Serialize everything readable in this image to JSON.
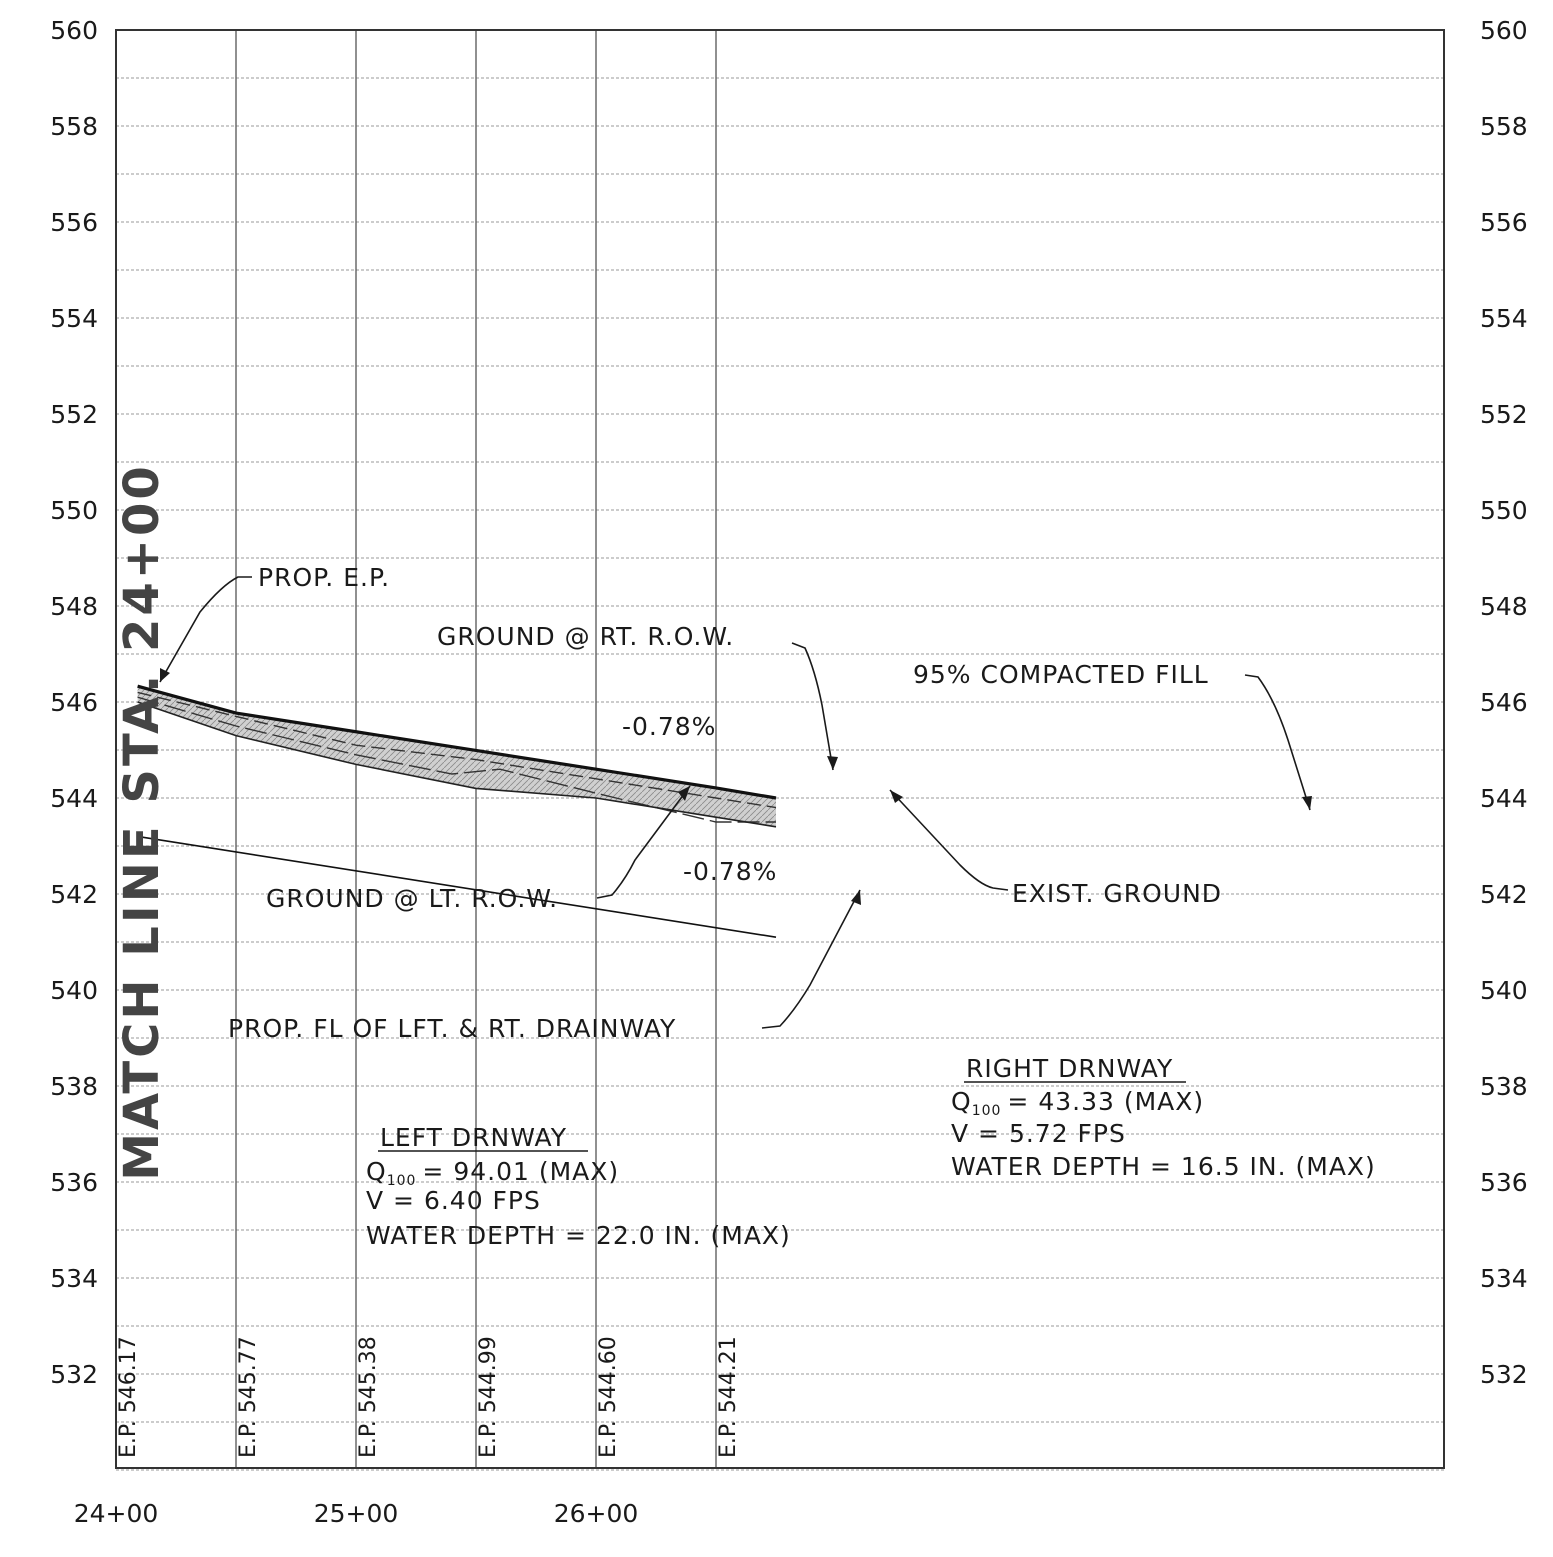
{
  "chart_data": {
    "type": "line",
    "title": "",
    "xlabel": "",
    "ylabel": "",
    "ylim": [
      530,
      560
    ],
    "yticks": [
      "532",
      "534",
      "536",
      "538",
      "540",
      "542",
      "544",
      "546",
      "548",
      "550",
      "552",
      "554",
      "556",
      "558",
      "560"
    ],
    "xlim": [
      2400,
      2675
    ],
    "xticks": [
      {
        "value": 2400,
        "label": "24+00"
      },
      {
        "value": 2500,
        "label": "25+00"
      },
      {
        "value": 2600,
        "label": "26+00"
      }
    ],
    "gridline_stations": [
      2400,
      2450,
      2500,
      2550,
      2600,
      2650
    ],
    "edge_of_pavement_labels": [
      {
        "station": 2400,
        "label": "E.P. 546.17"
      },
      {
        "station": 2450,
        "label": "E.P. 545.77"
      },
      {
        "station": 2500,
        "label": "E.P. 545.38"
      },
      {
        "station": 2550,
        "label": "E.P. 544.99"
      },
      {
        "station": 2600,
        "label": "E.P. 544.60"
      },
      {
        "station": 2650,
        "label": "E.P. 544.21"
      }
    ],
    "series": [
      {
        "key": "prop_ep",
        "x": [
          2409,
          2450,
          2500,
          2550,
          2600,
          2650,
          2675
        ],
        "y": [
          546.33,
          545.77,
          545.38,
          544.99,
          544.6,
          544.21,
          544.0
        ]
      },
      {
        "key": "ground_rt_row",
        "x": [
          2409,
          2450,
          2500,
          2550,
          2600,
          2650,
          2675
        ],
        "y": [
          546.2,
          545.7,
          545.1,
          544.8,
          544.4,
          544.0,
          543.8
        ]
      },
      {
        "key": "exist_ground",
        "x": [
          2409,
          2450,
          2500,
          2540,
          2560,
          2600,
          2650,
          2675
        ],
        "y": [
          546.1,
          545.5,
          544.9,
          544.5,
          544.6,
          544.1,
          543.5,
          543.5
        ]
      },
      {
        "key": "ground_lt_row",
        "x": [
          2409,
          2450,
          2500,
          2550,
          2600,
          2650,
          2675
        ],
        "y": [
          546.0,
          545.3,
          544.7,
          544.2,
          544.0,
          543.6,
          543.4
        ]
      },
      {
        "key": "prop_fl_drainway",
        "x": [
          2409,
          2675
        ],
        "y": [
          543.2,
          541.1
        ]
      }
    ],
    "annotations": {
      "match_line": "MATCH LINE STA. 24+00",
      "prop_ep": "PROP. E.P.",
      "ground_rt_row": "GROUND @ RT. R.O.W.",
      "compacted_fill": "95% COMPACTED FILL",
      "slope_top": "-0.78%",
      "slope_bottom": "-0.78%",
      "ground_lt_row": "GROUND @ LT. R.O.W.",
      "exist_ground": "EXIST. GROUND",
      "prop_fl": "PROP. FL OF LFT. & RT. DRAINWAY"
    },
    "left_drainway": {
      "title": "LEFT DRNWAY",
      "q_label": "Q",
      "q_sub": "100",
      "q_value": "= 94.01 (MAX)",
      "velocity": "V = 6.40 FPS",
      "depth": "WATER DEPTH = 22.0 IN. (MAX)"
    },
    "right_drainway": {
      "title": "RIGHT DRNWAY",
      "q_label": "Q",
      "q_sub": "100",
      "q_value": "= 43.33 (MAX)",
      "velocity": "V = 5.72 FPS",
      "depth": "WATER DEPTH = 16.5 IN. (MAX)"
    }
  }
}
